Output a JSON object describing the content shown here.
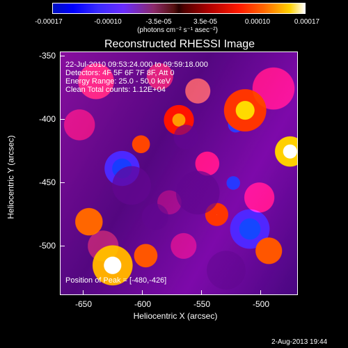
{
  "colorbar": {
    "tick_labels": [
      "-0.00017",
      "-0.00010",
      "-3.5e-05",
      "3.5e-05",
      "0.00010",
      "0.00017"
    ],
    "units": "(photons cm⁻² s⁻¹ asec⁻²)"
  },
  "plot": {
    "title": "Reconstructed RHESSI Image",
    "info_lines": [
      "22-Jul-2010 09:53:24.000 to 09:59:18.000",
      "Detectors: 4F 5F 6F 7F 8F, Att 0",
      "Energy Range: 25.0 - 50.0 keV",
      "Clean     Total counts: 1.12E+04"
    ],
    "peak_text": "Position of Peak = [-480,-426]",
    "x_axis_label": "Heliocentric X (arcsec)",
    "y_axis_label": "Heliocentric Y (arcsec)",
    "x_ticks": [
      "-650",
      "-600",
      "-550",
      "-500"
    ],
    "y_ticks": [
      "-350",
      "-400",
      "-450",
      "-500"
    ]
  },
  "footer": {
    "timestamp": "2-Aug-2013 19:44"
  }
}
